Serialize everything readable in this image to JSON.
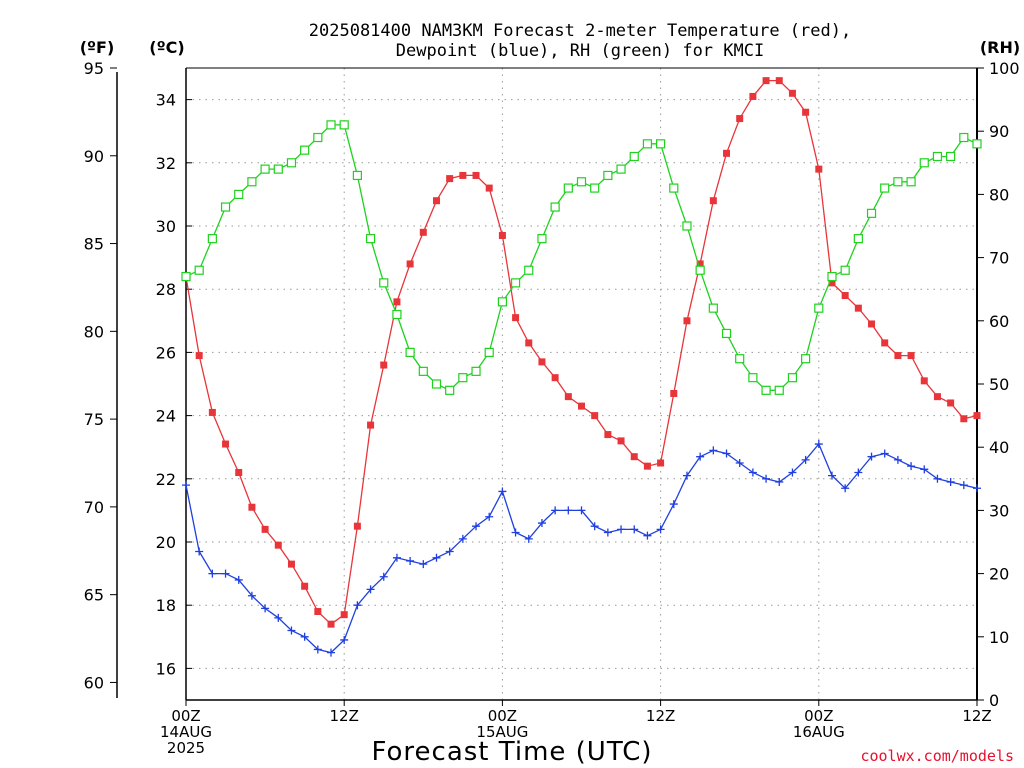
{
  "title": {
    "line1": "2025081400 NAM3KM Forecast 2-meter Temperature (red),",
    "line2": "Dewpoint (blue), RH (green) for KMCI"
  },
  "units": {
    "fahrenheit": "(ºF)",
    "celsius": "(ºC)",
    "rh": "(RH)"
  },
  "xlabel": "Forecast Time (UTC)",
  "credit": "coolwx.com/models",
  "colors": {
    "temperature": "#e8353a",
    "dewpoint": "#1f3fe0",
    "rh": "#1ed21e",
    "credit": "#e8102d"
  },
  "chart_data": {
    "type": "line",
    "x_unit": "hours since 2025-08-14 00Z",
    "x": [
      0,
      1,
      2,
      3,
      4,
      5,
      6,
      7,
      8,
      9,
      10,
      11,
      12,
      13,
      14,
      15,
      16,
      17,
      18,
      19,
      20,
      21,
      22,
      23,
      24,
      25,
      26,
      27,
      28,
      29,
      30,
      31,
      32,
      33,
      34,
      35,
      36,
      37,
      38,
      39,
      40,
      41,
      42,
      43,
      44,
      45,
      46,
      47,
      48,
      49,
      50,
      51,
      52,
      53,
      54,
      55,
      56,
      57,
      58,
      59,
      60
    ],
    "x_ticks": [
      {
        "x": 0,
        "lines": [
          "00Z",
          "14AUG",
          "2025"
        ]
      },
      {
        "x": 12,
        "lines": [
          "12Z"
        ]
      },
      {
        "x": 24,
        "lines": [
          "00Z",
          "15AUG"
        ]
      },
      {
        "x": 36,
        "lines": [
          "12Z"
        ]
      },
      {
        "x": 48,
        "lines": [
          "00Z",
          "16AUG"
        ]
      },
      {
        "x": 60,
        "lines": [
          "12Z"
        ]
      }
    ],
    "xlim": [
      0,
      60
    ],
    "y_left_celsius": {
      "lim": [
        15,
        35
      ],
      "ticks": [
        16,
        18,
        20,
        22,
        24,
        26,
        28,
        30,
        32,
        34
      ]
    },
    "y_left_fahrenheit": {
      "ticks": [
        60,
        65,
        70,
        75,
        80,
        85,
        90,
        95
      ]
    },
    "y_right_rh": {
      "lim": [
        0,
        100
      ],
      "ticks": [
        0,
        10,
        20,
        30,
        40,
        50,
        60,
        70,
        80,
        90,
        100
      ]
    },
    "grid": true,
    "series": [
      {
        "name": "Temperature",
        "axis": "celsius",
        "marker": "filled-square",
        "values": [
          28.4,
          25.9,
          24.1,
          23.1,
          22.2,
          21.1,
          20.4,
          19.9,
          19.3,
          18.6,
          17.8,
          17.4,
          17.7,
          20.5,
          23.7,
          25.6,
          27.6,
          28.8,
          29.8,
          30.8,
          31.5,
          31.6,
          31.6,
          31.2,
          29.7,
          27.1,
          26.3,
          25.7,
          25.2,
          24.6,
          24.3,
          24.0,
          23.4,
          23.2,
          22.7,
          22.4,
          22.5,
          24.7,
          27.0,
          28.8,
          30.8,
          32.3,
          33.4,
          34.1,
          34.6,
          34.6,
          34.2,
          33.6,
          31.8,
          28.2,
          27.8,
          27.4,
          26.9,
          26.3,
          25.9,
          25.9,
          25.1,
          24.6,
          24.4,
          23.9,
          24.0
        ]
      },
      {
        "name": "Dewpoint",
        "axis": "celsius",
        "marker": "plus",
        "values": [
          21.8,
          19.7,
          19.0,
          19.0,
          18.8,
          18.3,
          17.9,
          17.6,
          17.2,
          17.0,
          16.6,
          16.5,
          16.9,
          18.0,
          18.5,
          18.9,
          19.5,
          19.4,
          19.3,
          19.5,
          19.7,
          20.1,
          20.5,
          20.8,
          21.6,
          20.3,
          20.1,
          20.6,
          21.0,
          21.0,
          21.0,
          20.5,
          20.3,
          20.4,
          20.4,
          20.2,
          20.4,
          21.2,
          22.1,
          22.7,
          22.9,
          22.8,
          22.5,
          22.2,
          22.0,
          21.9,
          22.2,
          22.6,
          23.1,
          22.1,
          21.7,
          22.2,
          22.7,
          22.8,
          22.6,
          22.4,
          22.3,
          22.0,
          21.9,
          21.8,
          21.7
        ]
      },
      {
        "name": "RH",
        "axis": "rh",
        "marker": "open-square",
        "values": [
          67,
          68,
          73,
          78,
          80,
          82,
          84,
          84,
          85,
          87,
          89,
          91,
          91,
          83,
          73,
          66,
          61,
          55,
          52,
          50,
          49,
          51,
          52,
          55,
          63,
          66,
          68,
          73,
          78,
          81,
          82,
          81,
          83,
          84,
          86,
          88,
          88,
          81,
          75,
          68,
          62,
          58,
          54,
          51,
          49,
          49,
          51,
          54,
          62,
          67,
          68,
          73,
          77,
          81,
          82,
          82,
          85,
          86,
          86,
          89,
          88
        ]
      }
    ]
  }
}
